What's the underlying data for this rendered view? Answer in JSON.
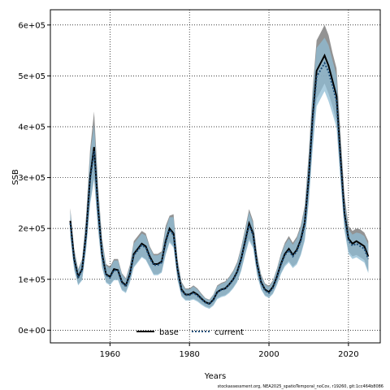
{
  "chart_data": {
    "type": "line",
    "title": "",
    "xlabel": "Years",
    "ylabel": "SSB",
    "xlim": [
      1945,
      2028
    ],
    "ylim": [
      -25000,
      630000
    ],
    "x_ticks": [
      1960,
      1980,
      2000,
      2020
    ],
    "y_ticks": [
      0,
      100000,
      200000,
      300000,
      400000,
      500000,
      600000
    ],
    "y_tick_labels": [
      "0e+00",
      "1e+05",
      "2e+05",
      "3e+05",
      "4e+05",
      "5e+05",
      "6e+05"
    ],
    "grid": true,
    "legend_position": "bottom-center",
    "footnote": "stockassessment.org, NEA2025_spatioTemporal_noCov, r19260, git:1cc464b8086",
    "years": [
      1950,
      1951,
      1952,
      1953,
      1954,
      1955,
      1956,
      1957,
      1958,
      1959,
      1960,
      1961,
      1962,
      1963,
      1964,
      1965,
      1966,
      1967,
      1968,
      1969,
      1970,
      1971,
      1972,
      1973,
      1974,
      1975,
      1976,
      1977,
      1978,
      1979,
      1980,
      1981,
      1982,
      1983,
      1984,
      1985,
      1986,
      1987,
      1988,
      1989,
      1990,
      1991,
      1992,
      1993,
      1994,
      1995,
      1996,
      1997,
      1998,
      1999,
      2000,
      2001,
      2002,
      2003,
      2004,
      2005,
      2006,
      2007,
      2008,
      2009,
      2010,
      2011,
      2012,
      2013,
      2014,
      2015,
      2016,
      2017,
      2018,
      2019,
      2020,
      2021,
      2022,
      2023,
      2024,
      2025
    ],
    "series": [
      {
        "name": "base",
        "color": "#000000",
        "band_color": "#808080",
        "values": [
          215000,
          140000,
          105000,
          120000,
          190000,
          300000,
          360000,
          240000,
          150000,
          110000,
          105000,
          120000,
          118000,
          95000,
          88000,
          110000,
          150000,
          160000,
          170000,
          165000,
          145000,
          130000,
          130000,
          135000,
          175000,
          200000,
          190000,
          120000,
          80000,
          70000,
          70000,
          75000,
          70000,
          62000,
          55000,
          52000,
          60000,
          75000,
          80000,
          82000,
          90000,
          100000,
          115000,
          140000,
          175000,
          210000,
          190000,
          130000,
          95000,
          80000,
          75000,
          85000,
          105000,
          130000,
          150000,
          160000,
          148000,
          158000,
          178000,
          212000,
          300000,
          420000,
          510000,
          525000,
          540000,
          520000,
          490000,
          460000,
          340000,
          230000,
          180000,
          170000,
          175000,
          170000,
          165000,
          145000
        ],
        "lower": [
          185000,
          120000,
          90000,
          100000,
          160000,
          250000,
          300000,
          200000,
          125000,
          95000,
          90000,
          100000,
          100000,
          80000,
          75000,
          95000,
          125000,
          135000,
          145000,
          140000,
          125000,
          110000,
          110000,
          115000,
          150000,
          175000,
          165000,
          100000,
          68000,
          60000,
          60000,
          62000,
          58000,
          52000,
          47000,
          44000,
          50000,
          63000,
          67000,
          69000,
          75000,
          84000,
          96000,
          118000,
          150000,
          180000,
          165000,
          110000,
          82000,
          69000,
          65000,
          73000,
          90000,
          112000,
          128000,
          136000,
          125000,
          132000,
          150000,
          180000,
          255000,
          365000,
          455000,
          470000,
          485000,
          465000,
          440000,
          410000,
          300000,
          200000,
          155000,
          145000,
          148000,
          143000,
          138000,
          115000
        ],
        "upper": [
          240000,
          160000,
          120000,
          140000,
          225000,
          355000,
          430000,
          285000,
          180000,
          130000,
          125000,
          140000,
          140000,
          112000,
          102000,
          128000,
          175000,
          185000,
          195000,
          190000,
          165000,
          150000,
          150000,
          155000,
          205000,
          225000,
          228000,
          140000,
          95000,
          82000,
          82000,
          88000,
          82000,
          72000,
          63000,
          60000,
          70000,
          88000,
          93000,
          96000,
          105000,
          117000,
          134000,
          163000,
          200000,
          238000,
          215000,
          150000,
          110000,
          92000,
          87000,
          98000,
          121000,
          150000,
          172000,
          185000,
          172000,
          184000,
          206000,
          245000,
          348000,
          475000,
          570000,
          585000,
          600000,
          580000,
          545000,
          515000,
          385000,
          265000,
          205000,
          195000,
          200000,
          198000,
          192000,
          175000
        ]
      },
      {
        "name": "current",
        "color": "#1f4e79",
        "band_color": "#8fbcd4",
        "values": [
          210000,
          137000,
          103000,
          118000,
          186000,
          295000,
          352000,
          235000,
          147000,
          108000,
          103000,
          118000,
          116000,
          93000,
          86000,
          108000,
          147000,
          157000,
          167000,
          162000,
          142000,
          128000,
          128000,
          133000,
          172000,
          197000,
          187000,
          118000,
          78000,
          69000,
          69000,
          73000,
          68000,
          61000,
          54000,
          51000,
          59000,
          74000,
          79000,
          81000,
          89000,
          99000,
          113000,
          138000,
          172000,
          206000,
          186000,
          128000,
          93000,
          78000,
          73000,
          83000,
          103000,
          128000,
          147000,
          157000,
          145000,
          155000,
          175000,
          208000,
          295000,
          412000,
          498000,
          512000,
          525000,
          508000,
          480000,
          450000,
          332000,
          225000,
          176000,
          166000,
          170000,
          165000,
          160000,
          140000
        ],
        "lower": [
          183000,
          118000,
          88000,
          98000,
          158000,
          247000,
          296000,
          197000,
          123000,
          93000,
          88000,
          98000,
          98000,
          78000,
          73000,
          93000,
          123000,
          133000,
          143000,
          138000,
          123000,
          108000,
          108000,
          113000,
          148000,
          172000,
          162000,
          98000,
          66000,
          58000,
          58000,
          60000,
          56000,
          50000,
          45000,
          42000,
          48000,
          61000,
          65000,
          67000,
          73000,
          82000,
          94000,
          116000,
          147000,
          176000,
          161000,
          108000,
          80000,
          67000,
          63000,
          71000,
          88000,
          110000,
          125000,
          133000,
          122000,
          129000,
          147000,
          176000,
          250000,
          355000,
          440000,
          455000,
          470000,
          450000,
          425000,
          398000,
          292000,
          195000,
          150000,
          140000,
          143000,
          138000,
          133000,
          112000
        ],
        "upper": [
          235000,
          157000,
          118000,
          138000,
          218000,
          345000,
          405000,
          278000,
          175000,
          127000,
          122000,
          137000,
          137000,
          110000,
          100000,
          125000,
          170000,
          180000,
          190000,
          186000,
          162000,
          147000,
          147000,
          152000,
          198000,
          222000,
          222000,
          137000,
          92000,
          80000,
          80000,
          86000,
          80000,
          70000,
          62000,
          59000,
          69000,
          86000,
          91000,
          94000,
          103000,
          115000,
          131000,
          160000,
          196000,
          232000,
          210000,
          147000,
          107000,
          90000,
          85000,
          96000,
          119000,
          147000,
          168000,
          180000,
          168000,
          180000,
          202000,
          240000,
          340000,
          465000,
          555000,
          565000,
          575000,
          560000,
          530000,
          500000,
          372000,
          255000,
          198000,
          188000,
          192000,
          190000,
          185000,
          168000
        ]
      }
    ]
  }
}
